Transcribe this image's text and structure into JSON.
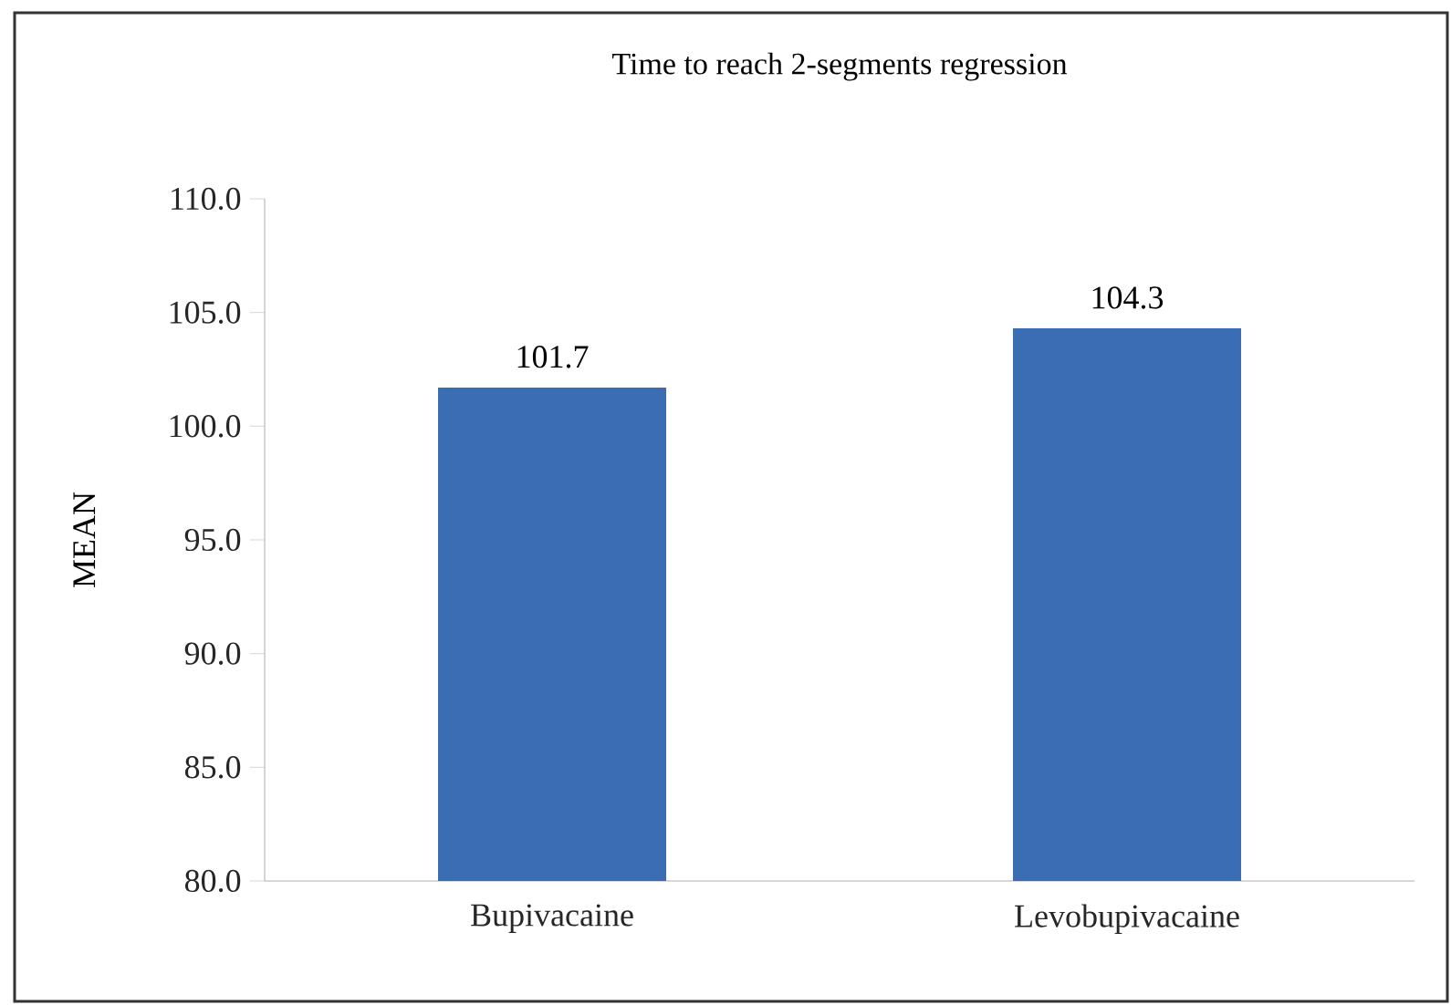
{
  "chart_data": {
    "type": "bar",
    "title": "Time to reach 2-segments regression",
    "ylabel": "MEAN",
    "categories": [
      "Bupivacaine",
      "Levobupivacaine"
    ],
    "values": [
      101.7,
      104.3
    ],
    "color": "#3a6db3",
    "data_labels": true,
    "ylim": [
      80,
      110
    ],
    "yticks": [
      {
        "value": 80,
        "label": "80.0"
      },
      {
        "value": 85,
        "label": "85.0"
      },
      {
        "value": 90,
        "label": "90.0"
      },
      {
        "value": 95,
        "label": "95.0"
      },
      {
        "value": 100,
        "label": "100.0"
      },
      {
        "value": 105,
        "label": "105.0"
      },
      {
        "value": 110,
        "label": "110.0"
      }
    ],
    "grid": false
  }
}
